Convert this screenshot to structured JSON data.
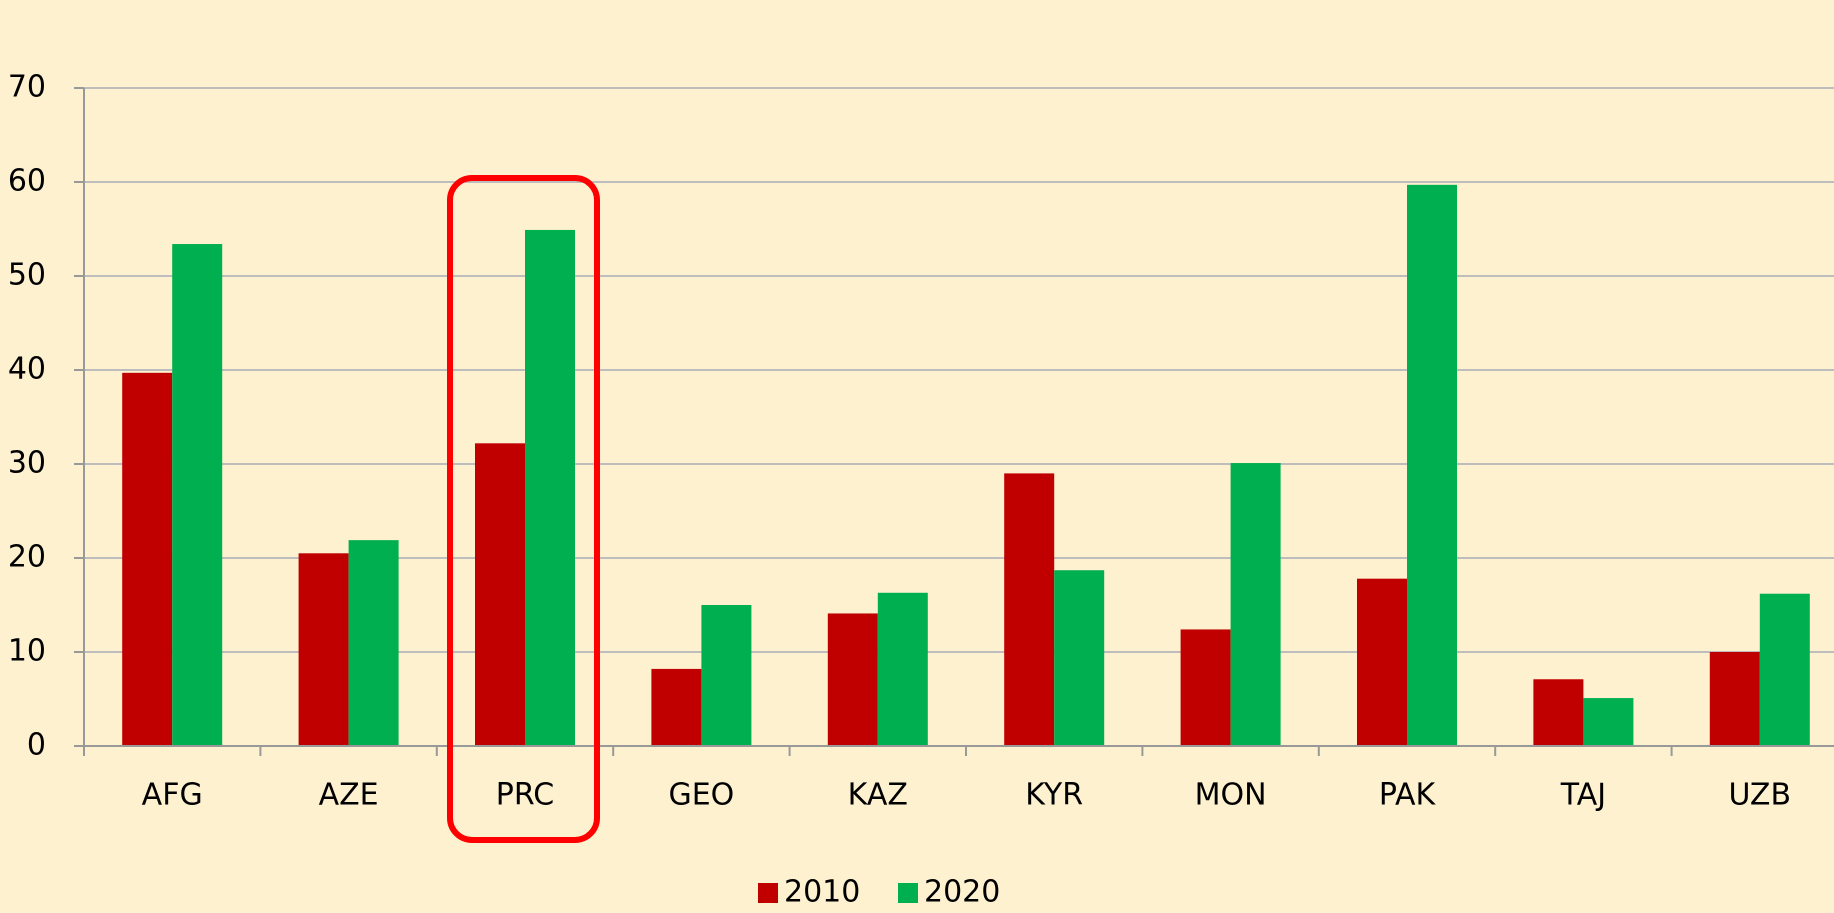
{
  "chart_data": {
    "type": "bar",
    "categories": [
      "AFG",
      "AZE",
      "PRC",
      "GEO",
      "KAZ",
      "KYR",
      "MON",
      "PAK",
      "TAJ",
      "UZB"
    ],
    "series": [
      {
        "name": "2010",
        "color": "#c00000",
        "values": [
          39.7,
          20.5,
          32.2,
          8.2,
          14.1,
          29.0,
          12.4,
          17.8,
          7.1,
          10.0
        ]
      },
      {
        "name": "2020",
        "color": "#00b050",
        "values": [
          53.4,
          21.9,
          54.9,
          15.0,
          16.3,
          18.7,
          30.1,
          59.7,
          5.1,
          16.2
        ]
      }
    ],
    "ylim": [
      0,
      70
    ],
    "yticks": [
      0,
      10,
      20,
      30,
      40,
      50,
      60,
      70
    ],
    "grid": true,
    "legend": "bottom"
  }
}
